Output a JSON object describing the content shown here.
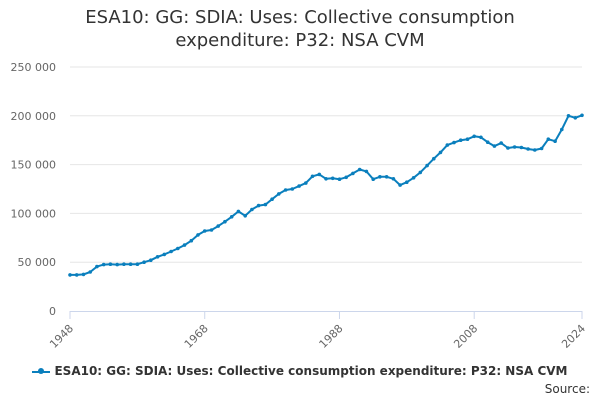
{
  "chart_data": {
    "type": "line",
    "title": "ESA10: GG: SDIA: Uses: Collective consumption expenditure: P32: NSA CVM",
    "xlabel": "",
    "ylabel": "",
    "ylim": [
      0,
      250000
    ],
    "yticks": [
      0,
      50000,
      100000,
      150000,
      200000,
      250000
    ],
    "ytick_labels": [
      "0",
      "50 000",
      "100 000",
      "150 000",
      "200 000",
      "250 000"
    ],
    "xlim": [
      1948,
      2024
    ],
    "xticks": [
      1948,
      1968,
      1988,
      2008,
      2024
    ],
    "xtick_labels": [
      "1948",
      "1968",
      "1988",
      "2008",
      "2024"
    ],
    "legend_position": "bottom",
    "color": "#0a7fbd",
    "series": [
      {
        "name": "ESA10: GG: SDIA: Uses: Collective consumption expenditure: P32: NSA CVM",
        "x": [
          1948,
          1949,
          1950,
          1951,
          1952,
          1953,
          1954,
          1955,
          1956,
          1957,
          1958,
          1959,
          1960,
          1961,
          1962,
          1963,
          1964,
          1965,
          1966,
          1967,
          1968,
          1969,
          1970,
          1971,
          1972,
          1973,
          1974,
          1975,
          1976,
          1977,
          1978,
          1979,
          1980,
          1981,
          1982,
          1983,
          1984,
          1985,
          1986,
          1987,
          1988,
          1989,
          1990,
          1991,
          1992,
          1993,
          1994,
          1995,
          1996,
          1997,
          1998,
          1999,
          2000,
          2001,
          2002,
          2003,
          2004,
          2005,
          2006,
          2007,
          2008,
          2009,
          2010,
          2011,
          2012,
          2013,
          2014,
          2015,
          2016,
          2017,
          2018,
          2019,
          2020,
          2021,
          2022,
          2023,
          2024
        ],
        "values": [
          37000,
          37000,
          37500,
          40000,
          45500,
          47500,
          48000,
          47500,
          48000,
          48000,
          48000,
          50000,
          52000,
          55500,
          58000,
          61000,
          64000,
          67500,
          72000,
          78000,
          82000,
          83000,
          87000,
          91500,
          96500,
          102000,
          97500,
          104000,
          108000,
          109000,
          114500,
          120000,
          124000,
          125000,
          128000,
          131000,
          138000,
          140000,
          135500,
          136000,
          135000,
          137000,
          141000,
          145000,
          143000,
          135000,
          137500,
          137500,
          135500,
          129000,
          132000,
          136500,
          142000,
          149000,
          156000,
          162500,
          170000,
          172500,
          175000,
          176000,
          179000,
          178000,
          173000,
          169000,
          172000,
          167000,
          168000,
          167500,
          166000,
          165000,
          166500,
          176000,
          174000,
          186000,
          200000,
          198000,
          200500
        ]
      }
    ],
    "legend_label": "ESA10: GG: SDIA: Uses: Collective consumption expenditure: P32: NSA CVM",
    "source_label": "Source:"
  }
}
